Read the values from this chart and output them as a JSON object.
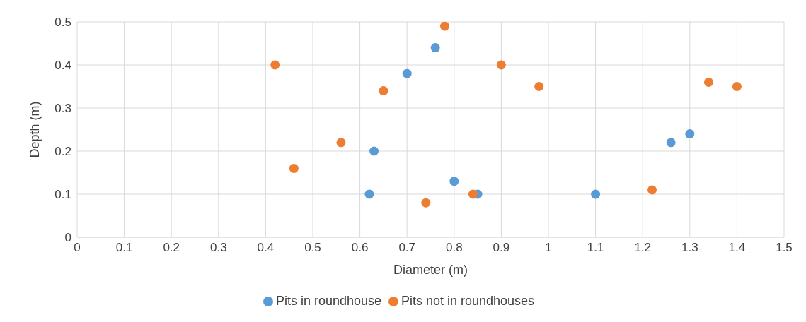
{
  "chart_data": {
    "type": "scatter",
    "xlabel": "Diameter (m)",
    "ylabel": "Depth (m)",
    "xlim": [
      0,
      1.5
    ],
    "xticks": [
      0,
      0.1,
      0.2,
      0.3,
      0.4,
      0.5,
      0.6,
      0.7,
      0.8,
      0.9,
      1,
      1.1,
      1.2,
      1.3,
      1.4,
      1.5
    ],
    "ylim": [
      0,
      0.5
    ],
    "yticks": [
      0,
      0.1,
      0.2,
      0.3,
      0.4,
      0.5
    ],
    "grid": true,
    "legend": "bottom",
    "marker": "circle",
    "series": [
      {
        "name": "Pits in roundhouse",
        "color": "#5b9bd5",
        "x": [
          0.62,
          0.63,
          0.7,
          0.76,
          0.8,
          0.85,
          1.1,
          1.26,
          1.3
        ],
        "values": [
          0.1,
          0.2,
          0.38,
          0.44,
          0.13,
          0.1,
          0.1,
          0.22,
          0.24
        ]
      },
      {
        "name": "Pits not in roundhouses",
        "color": "#ed7d31",
        "x": [
          0.42,
          0.46,
          0.56,
          0.65,
          0.74,
          0.78,
          0.84,
          0.9,
          0.98,
          1.22,
          1.34,
          1.4
        ],
        "values": [
          0.4,
          0.16,
          0.22,
          0.34,
          0.08,
          0.49,
          0.1,
          0.4,
          0.35,
          0.11,
          0.36,
          0.35
        ]
      }
    ]
  }
}
